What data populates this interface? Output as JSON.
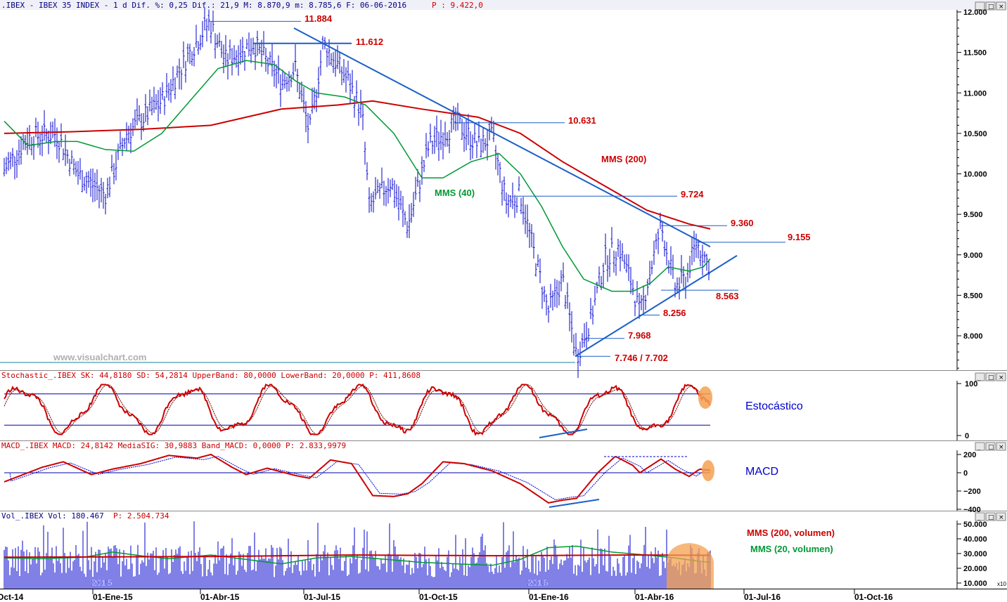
{
  "chart_data": [
    {
      "type": "candlestick",
      "header": ".IBEX - IBEX 35 INDEX -   1 d Dif. %: 0,25 Dif.: 21,9 M: 8.870,9 m: 8.785,6 F: 06-06-2016",
      "header_p": "P : 9.422,0",
      "watermark": "www.visualchart.com",
      "y_ticks": [
        "12.000",
        "11.500",
        "11.000",
        "10.500",
        "10.000",
        "9.500",
        "9.000",
        "8.500",
        "8.000"
      ],
      "y_tick_values": [
        12000,
        11500,
        11000,
        10500,
        10000,
        9500,
        9000,
        8500,
        8000
      ],
      "ylim": [
        7600,
        12000
      ],
      "levels": [
        {
          "label": "11.884",
          "value": 11884
        },
        {
          "label": "11.612",
          "value": 11612
        },
        {
          "label": "10.631",
          "value": 10631
        },
        {
          "label": "9.724",
          "value": 9724
        },
        {
          "label": "9.360",
          "value": 9360
        },
        {
          "label": "9.155",
          "value": 9155
        },
        {
          "label": "8.563",
          "value": 8563
        },
        {
          "label": "8.256",
          "value": 8256
        },
        {
          "label": "7.968",
          "value": 7968
        },
        {
          "label": "7.746 / 7.702",
          "value": 7746
        }
      ],
      "ma_labels": {
        "ma200": "MMS (200)",
        "ma40": "MMS (40)"
      },
      "colors": {
        "price": "#0000cc",
        "ma200": "#cc0000",
        "ma40": "#009933",
        "trend": "#1a5fc8",
        "level_text": "#cc0000"
      }
    },
    {
      "type": "line",
      "header": "Stochastic_.IBEX SK: 44,8180 SD: 54,2814 UpperBand: 80,0000 LowerBand: 20,0000 P: 411,8608",
      "annotation": "Estocástico",
      "y_ticks": [
        "100",
        "0"
      ],
      "bands": [
        80,
        20
      ]
    },
    {
      "type": "line",
      "header": "MACD_.IBEX MACD: 24,8142 MediaSIG: 30,9883 Band_MACD: 0,0000 P: 2.833,9979",
      "annotation": "MACD",
      "y_ticks": [
        "200",
        "0",
        "−200",
        "−400"
      ]
    },
    {
      "type": "bar",
      "header_a": "Vol_.IBEX Vol: 180.467",
      "header_b": "P: 2.504.734",
      "annotation_200": "MMS (200, volumen)",
      "annotation_20": "MMS (20, volumen)",
      "y_ticks": [
        "50.000",
        "40.000",
        "30.000",
        "20.000",
        "10.000"
      ],
      "year_labels": [
        "2015",
        "2016"
      ],
      "scale_label": "x10"
    }
  ],
  "x_axis": {
    "dates": [
      "Oct-14",
      "01-Ene-15",
      "01-Abr-15",
      "01-Jul-15",
      "01-Oct-15",
      "01-Ene-16",
      "01-Abr-16",
      "01-Jul-16",
      "01-Oct-16"
    ]
  }
}
